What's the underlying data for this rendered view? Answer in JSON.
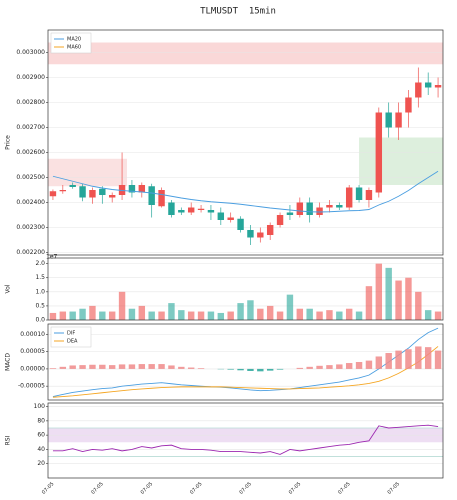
{
  "chart_data": [
    {
      "type": "candlestick",
      "title": "TLMUSDT  15min",
      "ylabel": "Price",
      "up_color": "#ef5350",
      "down_color": "#26a69a",
      "open": [
        0.002425,
        0.002445,
        0.00247,
        0.002465,
        0.00242,
        0.002455,
        0.00242,
        0.00243,
        0.00247,
        0.00244,
        0.002465,
        0.002385,
        0.0024,
        0.00237,
        0.00236,
        0.00237,
        0.00237,
        0.00236,
        0.00233,
        0.002335,
        0.00229,
        0.00226,
        0.00227,
        0.00231,
        0.00236,
        0.00235,
        0.0024,
        0.00235,
        0.00238,
        0.00239,
        0.00238,
        0.00246,
        0.00241,
        0.00244,
        0.00276,
        0.0027,
        0.00276,
        0.00282,
        0.00288,
        0.00286
      ],
      "high": [
        0.002452,
        0.00247,
        0.00248,
        0.002475,
        0.00246,
        0.002465,
        0.00244,
        0.0026,
        0.00249,
        0.00248,
        0.002475,
        0.00246,
        0.00241,
        0.00238,
        0.0024,
        0.00239,
        0.00239,
        0.00238,
        0.00236,
        0.002345,
        0.00231,
        0.0023,
        0.00232,
        0.00236,
        0.00239,
        0.00242,
        0.00242,
        0.0024,
        0.00241,
        0.0024,
        0.00247,
        0.00247,
        0.00246,
        0.00278,
        0.0028,
        0.0028,
        0.00285,
        0.00294,
        0.00292,
        0.0029
      ],
      "low": [
        0.00241,
        0.002435,
        0.002455,
        0.002405,
        0.002395,
        0.002395,
        0.0024,
        0.00241,
        0.00242,
        0.00242,
        0.00234,
        0.00238,
        0.00234,
        0.00235,
        0.00235,
        0.00236,
        0.00233,
        0.00231,
        0.00232,
        0.00228,
        0.00223,
        0.00224,
        0.00225,
        0.0023,
        0.00233,
        0.00234,
        0.00232,
        0.00234,
        0.00236,
        0.00237,
        0.00237,
        0.0024,
        0.00238,
        0.00242,
        0.00266,
        0.00265,
        0.0027,
        0.00278,
        0.00283,
        0.00282
      ],
      "close": [
        0.002445,
        0.00245,
        0.002462,
        0.00242,
        0.00245,
        0.00243,
        0.00243,
        0.00247,
        0.00244,
        0.00247,
        0.00239,
        0.00245,
        0.00235,
        0.00236,
        0.00238,
        0.002375,
        0.00236,
        0.00233,
        0.00234,
        0.00229,
        0.00226,
        0.00228,
        0.00231,
        0.00235,
        0.00235,
        0.0024,
        0.00235,
        0.00238,
        0.00239,
        0.00238,
        0.00246,
        0.00241,
        0.00245,
        0.00276,
        0.0027,
        0.00276,
        0.00282,
        0.00288,
        0.00286,
        0.00287
      ],
      "series": [
        {
          "name": "MA20",
          "color": "#4a9ee0",
          "values": [
            0.002505,
            0.002495,
            0.002485,
            0.002475,
            0.002465,
            0.002458,
            0.002452,
            0.002448,
            0.002445,
            0.002442,
            0.002438,
            0.002432,
            0.002425,
            0.002418,
            0.002412,
            0.002407,
            0.002403,
            0.0024,
            0.002397,
            0.002393,
            0.002388,
            0.002383,
            0.002378,
            0.002374,
            0.00237,
            0.002366,
            0.002363,
            0.002362,
            0.002363,
            0.002365,
            0.002367,
            0.002368,
            0.002372,
            0.00239,
            0.002405,
            0.002425,
            0.002448,
            0.002475,
            0.0025,
            0.002525
          ]
        },
        {
          "name": "MA60",
          "color": "#f5a623",
          "values": [
            null,
            null,
            null,
            null,
            null,
            null,
            null,
            null,
            null,
            null,
            null,
            null,
            null,
            null,
            null,
            null,
            null,
            null,
            null,
            null,
            null,
            null,
            null,
            null,
            null,
            null,
            null,
            null,
            null,
            null,
            null,
            null,
            null,
            null,
            null,
            null,
            null,
            null,
            null,
            null
          ]
        }
      ],
      "zones": [
        {
          "x0": -0.5,
          "x1": 39.5,
          "y0": 0.002953,
          "y1": 0.00304,
          "color": "#f8c8c8"
        },
        {
          "x0": -0.5,
          "x1": 7.5,
          "y0": 0.002465,
          "y1": 0.002575,
          "color": "#f8d4d4"
        },
        {
          "x0": 31,
          "x1": 39.5,
          "y0": 0.00247,
          "y1": 0.00266,
          "color": "#cfe8cf"
        }
      ],
      "ylim": [
        0.00219,
        0.00309
      ],
      "yticks": [
        {
          "value": 0.0022,
          "label": "0.002200"
        },
        {
          "value": 0.0023,
          "label": "0.002300"
        },
        {
          "value": 0.0024,
          "label": "0.002400"
        },
        {
          "value": 0.0025,
          "label": "0.002500"
        },
        {
          "value": 0.0026,
          "label": "0.002600"
        },
        {
          "value": 0.0027,
          "label": "0.002700"
        },
        {
          "value": 0.0028,
          "label": "0.002800"
        },
        {
          "value": 0.0029,
          "label": "0.002900"
        },
        {
          "value": 0.003,
          "label": "0.003000"
        }
      ],
      "grid": true,
      "legend": "upper left"
    },
    {
      "type": "volume",
      "ylabel": "Vol",
      "offset_label": "1e7",
      "values": [
        0.25,
        0.3,
        0.3,
        0.4,
        0.5,
        0.3,
        0.3,
        1.0,
        0.4,
        0.5,
        0.3,
        0.3,
        0.6,
        0.35,
        0.3,
        0.3,
        0.3,
        0.25,
        0.3,
        0.6,
        0.7,
        0.4,
        0.5,
        0.3,
        0.9,
        0.4,
        0.4,
        0.3,
        0.35,
        0.3,
        0.4,
        0.3,
        1.2,
        2.0,
        1.85,
        1.4,
        1.5,
        1.0,
        0.35,
        0.3
      ],
      "ylim": [
        0,
        2.2
      ],
      "yticks": [
        {
          "value": 0,
          "label": "0.0"
        },
        {
          "value": 0.5,
          "label": "0.5"
        },
        {
          "value": 1,
          "label": "1.0"
        },
        {
          "value": 1.5,
          "label": "1.5"
        },
        {
          "value": 2,
          "label": "2.0"
        }
      ],
      "grid": true
    },
    {
      "type": "line",
      "ylabel": "MACD",
      "series": [
        {
          "name": "DIF",
          "color": "#4a9ee0",
          "values": [
            -8e-05,
            -7.4e-05,
            -6.8e-05,
            -6.4e-05,
            -6e-05,
            -5.7e-05,
            -5.5e-05,
            -5e-05,
            -4.7e-05,
            -4.4e-05,
            -4.2e-05,
            -4e-05,
            -4.3e-05,
            -4.6e-05,
            -4.8e-05,
            -5e-05,
            -5.2e-05,
            -5.3e-05,
            -5.5e-05,
            -5.8e-05,
            -6.1e-05,
            -6.3e-05,
            -6.2e-05,
            -6e-05,
            -5.8e-05,
            -5.4e-05,
            -5e-05,
            -4.6e-05,
            -4.2e-05,
            -3.8e-05,
            -3.2e-05,
            -2.6e-05,
            -1.8e-05,
            0,
            2e-05,
            4e-05,
            6e-05,
            8.5e-05,
            0.000105,
            0.000118
          ]
        },
        {
          "name": "DEA",
          "color": "#f5a623",
          "values": [
            -8.2e-05,
            -8e-05,
            -7.8e-05,
            -7.5e-05,
            -7.2e-05,
            -6.9e-05,
            -6.6e-05,
            -6.3e-05,
            -6e-05,
            -5.8e-05,
            -5.6e-05,
            -5.4e-05,
            -5.3e-05,
            -5.2e-05,
            -5.2e-05,
            -5.2e-05,
            -5.2e-05,
            -5.2e-05,
            -5.3e-05,
            -5.4e-05,
            -5.5e-05,
            -5.6e-05,
            -5.7e-05,
            -5.8e-05,
            -5.8e-05,
            -5.7e-05,
            -5.6e-05,
            -5.5e-05,
            -5.3e-05,
            -5.1e-05,
            -4.9e-05,
            -4.6e-05,
            -4.2e-05,
            -3.6e-05,
            -2.6e-05,
            -1.3e-05,
            3e-06,
            2e-05,
            4.2e-05,
            6.5e-05
          ]
        },
        {
          "style": "bar",
          "up_color": "#f08a8a",
          "down_color": "#26a69a",
          "values": [
            2e-06,
            6e-06,
            1e-05,
            1.1e-05,
            1.2e-05,
            1.2e-05,
            1.1e-05,
            1.3e-05,
            1.3e-05,
            1.4e-05,
            1.4e-05,
            1.4e-05,
            1e-05,
            6e-06,
            4e-06,
            2e-06,
            0,
            -1e-06,
            -2e-06,
            -4e-06,
            -6e-06,
            -7e-06,
            -5e-06,
            -2e-06,
            0,
            3e-06,
            6e-06,
            9e-06,
            1.1e-05,
            1.3e-05,
            1.7e-05,
            2e-05,
            2.4e-05,
            3.6e-05,
            4.6e-05,
            5.3e-05,
            5.7e-05,
            6.5e-05,
            6.3e-05,
            5.3e-05
          ]
        }
      ],
      "ylim": [
        -9e-05,
        0.00013
      ],
      "yticks": [
        {
          "value": -5e-05,
          "label": "-0.00005"
        },
        {
          "value": 0,
          "label": "0.00000"
        },
        {
          "value": 5e-05,
          "label": "0.00005"
        },
        {
          "value": 0.0001,
          "label": "0.00010"
        }
      ],
      "grid": true,
      "legend": "upper left"
    },
    {
      "type": "line",
      "ylabel": "RSI",
      "categories": [
        "07-05",
        null,
        null,
        null,
        null,
        "07-05",
        null,
        null,
        null,
        null,
        "07-05",
        null,
        null,
        null,
        null,
        "07-05",
        null,
        null,
        null,
        null,
        "07-05",
        null,
        null,
        null,
        null,
        "07-05",
        null,
        null,
        null,
        null,
        "07-05",
        null,
        null,
        null,
        null,
        "07-05",
        null,
        null,
        null,
        null
      ],
      "series": [
        {
          "color": "#9c27b0",
          "values": [
            38,
            38,
            41,
            37,
            40,
            39,
            41,
            38,
            40,
            44,
            42,
            45,
            46,
            41,
            40,
            40,
            39,
            37,
            37,
            37,
            36,
            35,
            37,
            33,
            40,
            38,
            40,
            42,
            44,
            46,
            47,
            50,
            52,
            73,
            70,
            71,
            72,
            73,
            74,
            72
          ]
        }
      ],
      "band": [
        50,
        70
      ],
      "band_color": "#ead6f0",
      "hlines": [
        30,
        70
      ],
      "hline_color": "#b8dcd6",
      "ylim": [
        0,
        105
      ],
      "yticks": [
        20,
        40,
        60,
        80,
        100
      ],
      "grid": true
    }
  ]
}
